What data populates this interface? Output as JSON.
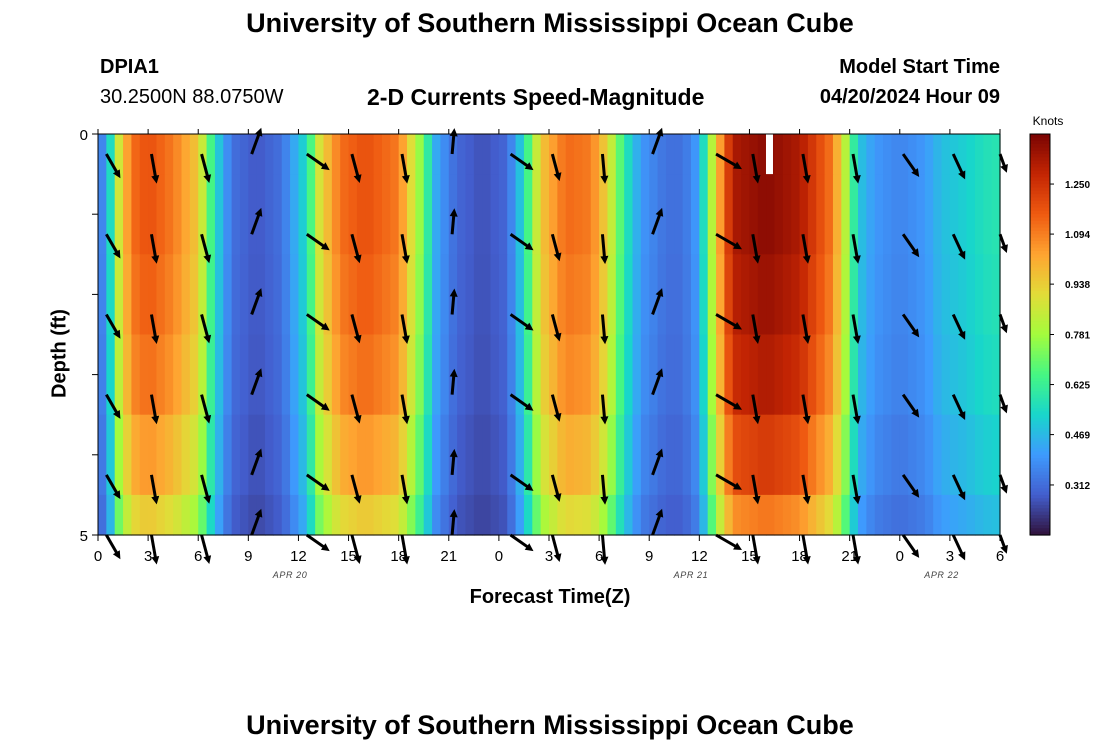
{
  "page": {
    "title": "University of Southern Mississippi Ocean Cube",
    "station_id": "DPIA1",
    "station_coords": "30.2500N  88.0750W",
    "subtitle": "2-D Currents Speed-Magnitude",
    "model_start_label": "Model Start Time",
    "model_start_value": "04/20/2024 Hour 09",
    "bottom_title": "University of Southern Mississippi Ocean Cube"
  },
  "chart_data": {
    "type": "heatmap",
    "title": "2-D Currents Speed-Magnitude",
    "xlabel": "Forecast Time(Z)",
    "ylabel": "Depth (ft)",
    "x_tick_labels": [
      "0",
      "3",
      "6",
      "9",
      "12",
      "15",
      "18",
      "21",
      "0",
      "3",
      "6",
      "9",
      "12",
      "15",
      "18",
      "21",
      "0",
      "3",
      "6"
    ],
    "x_range_hours": [
      0,
      54
    ],
    "y_tick_labels": [
      "0",
      "5"
    ],
    "y_range": [
      0,
      5
    ],
    "y_ticks_minor": 4,
    "date_labels": [
      {
        "text": "APR 20",
        "hour": 11.5
      },
      {
        "text": "APR 21",
        "hour": 35.5
      },
      {
        "text": "APR 22",
        "hour": 50.5
      }
    ],
    "colorbar": {
      "unit_label": "Knots",
      "min": 0.156,
      "max": 1.406,
      "tick_labels": [
        "1.250",
        "1.094",
        "0.938",
        "0.781",
        "0.625",
        "0.469",
        "0.312"
      ],
      "tick_values": [
        1.25,
        1.094,
        0.938,
        0.781,
        0.625,
        0.469,
        0.312
      ]
    },
    "depth_levels": 5,
    "speed_profile_knots": [
      [
        0,
        0.3
      ],
      [
        0.6,
        0.45
      ],
      [
        1.2,
        0.85
      ],
      [
        2,
        1.12
      ],
      [
        3,
        1.18
      ],
      [
        4.5,
        1.1
      ],
      [
        6,
        0.95
      ],
      [
        7,
        0.55
      ],
      [
        8,
        0.32
      ],
      [
        9.5,
        0.27
      ],
      [
        11,
        0.32
      ],
      [
        12.5,
        0.55
      ],
      [
        13.3,
        0.9
      ],
      [
        14.5,
        1.12
      ],
      [
        16,
        1.18
      ],
      [
        18,
        1.1
      ],
      [
        19.2,
        0.78
      ],
      [
        20.3,
        0.42
      ],
      [
        21.5,
        0.3
      ],
      [
        23,
        0.26
      ],
      [
        24.5,
        0.3
      ],
      [
        25.5,
        0.55
      ],
      [
        26.5,
        0.95
      ],
      [
        28,
        1.13
      ],
      [
        29.5,
        1.1
      ],
      [
        30.5,
        0.92
      ],
      [
        31.5,
        0.6
      ],
      [
        32.5,
        0.4
      ],
      [
        34,
        0.32
      ],
      [
        35,
        0.32
      ],
      [
        36,
        0.42
      ],
      [
        37,
        0.95
      ],
      [
        38,
        1.32
      ],
      [
        40,
        1.38
      ],
      [
        42,
        1.32
      ],
      [
        44,
        1.1
      ],
      [
        44.8,
        0.8
      ],
      [
        45.5,
        0.5
      ],
      [
        46.5,
        0.4
      ],
      [
        48,
        0.36
      ],
      [
        49.5,
        0.4
      ],
      [
        50.5,
        0.48
      ],
      [
        52,
        0.52
      ],
      [
        53,
        0.56
      ],
      [
        54,
        0.58
      ]
    ],
    "depth_modifiers": [
      1.0,
      1.0,
      0.98,
      0.95,
      0.88,
      0.78,
      0.66
    ],
    "arrow_columns_hours": [
      0.5,
      3.2,
      6.2,
      9.2,
      12.5,
      15.2,
      18.2,
      21.2,
      24.7,
      27.2,
      30.2,
      33.2,
      37.0,
      39.2,
      42.2,
      45.2,
      48.2,
      51.2,
      54
    ],
    "arrow_rows_depth_ft": [
      0.25,
      1.25,
      2.25,
      3.25,
      4.25,
      5.0
    ],
    "arrow_direction_deg_by_column": [
      150,
      170,
      165,
      20,
      125,
      165,
      170,
      5,
      125,
      165,
      175,
      20,
      120,
      170,
      170,
      170,
      145,
      155,
      160
    ],
    "arrow_length_by_column": [
      28,
      30,
      30,
      28,
      28,
      30,
      30,
      26,
      28,
      28,
      30,
      28,
      30,
      30,
      30,
      30,
      28,
      28,
      20
    ],
    "white_marker_hour": 40.2
  },
  "colors": {
    "arrow": "#000000",
    "frame": "#000000",
    "marker": "#ffffff"
  }
}
